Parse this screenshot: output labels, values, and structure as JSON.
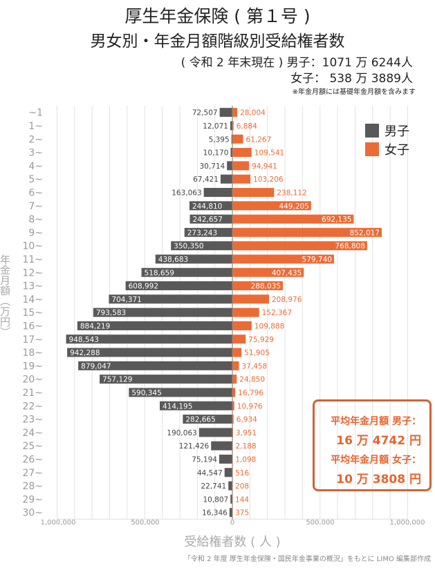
{
  "title": "厚生年金保険 ( 第１号 )",
  "subtitle": "男女別・年金月額階級別受給権者数",
  "summary_male": "( 令和 2 年末現在 ) 男子：1071 万 6244人",
  "summary_female": "女子：  538 万 3889人",
  "note": "※年金月額には基礎年金月額を含みます",
  "average_box": {
    "male_label": "平均年金月額  男子：",
    "male_value": "16 万 4742 円",
    "female_label": "平均年金月額  女子：",
    "female_value": "10 万 3808 円"
  },
  "source": "「令和 2 年度 厚生年金保険・国民年金事業の概況」をもとに LIMO 編集部作成",
  "colors": {
    "male": "#595959",
    "female": "#ec6b35",
    "axis": "#a08070",
    "grid": "#e2e2e2"
  },
  "chart_data": {
    "type": "bar",
    "orientation": "horizontal-butterfly",
    "ylabel": "年金月額（万円）",
    "xlabel": "受給権者数 ( 人 )",
    "xlim": [
      -1000000,
      1000000
    ],
    "x_tick_labels": [
      "1,000,000",
      "500,000",
      "0",
      "500,000",
      "1,000,000"
    ],
    "grid": true,
    "legend": "top-right",
    "categories": [
      "~1",
      "1~",
      "2~",
      "3~",
      "4~",
      "5~",
      "6~",
      "7~",
      "8~",
      "9~",
      "10~",
      "11~",
      "12~",
      "13~",
      "14~",
      "15~",
      "16~",
      "17~",
      "18~",
      "19~",
      "20~",
      "21~",
      "22~",
      "23~",
      "24~",
      "25~",
      "26~",
      "27~",
      "28~",
      "29~",
      "30~"
    ],
    "series": [
      {
        "name": "男子",
        "values": [
          72507,
          12071,
          5395,
          10170,
          30714,
          67421,
          163063,
          244810,
          242657,
          273243,
          350350,
          438683,
          518659,
          608992,
          704371,
          793583,
          884219,
          948543,
          942288,
          879047,
          757129,
          590345,
          414195,
          282665,
          190063,
          121426,
          75194,
          44547,
          22741,
          10807,
          16346
        ]
      },
      {
        "name": "女子",
        "values": [
          28004,
          6884,
          61267,
          109541,
          94941,
          103206,
          238112,
          449205,
          692135,
          852017,
          768808,
          579740,
          407435,
          288035,
          208976,
          152367,
          109888,
          75929,
          51905,
          37458,
          24850,
          16796,
          10976,
          6934,
          3951,
          2188,
          1098,
          516,
          208,
          144,
          375
        ]
      }
    ]
  }
}
